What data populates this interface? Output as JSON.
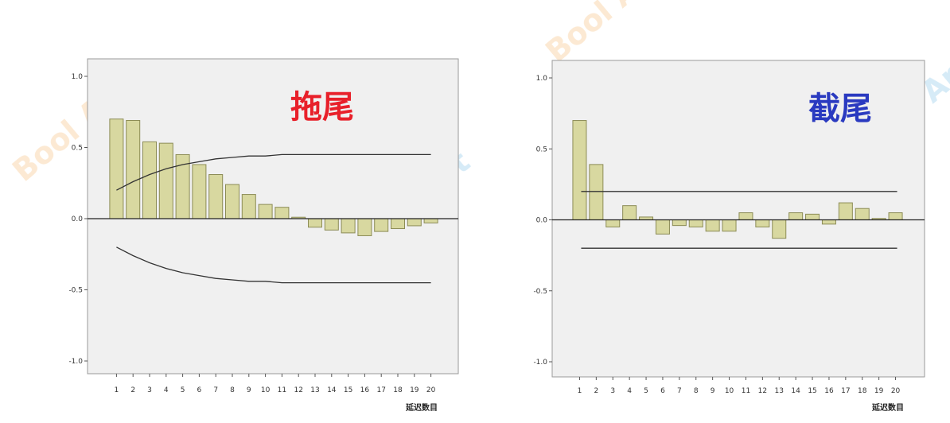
{
  "chart_data": [
    {
      "type": "bar",
      "title": "拖尾",
      "title_color": "#e8202a",
      "xlabel": "延迟数目",
      "ylabel": "",
      "ylim": [
        -1.0,
        1.0
      ],
      "yticks": [
        "1.0",
        "0.5",
        "0.0",
        "-0.5",
        "-1.0"
      ],
      "ytick_values": [
        1.0,
        0.5,
        0.0,
        -0.5,
        -1.0
      ],
      "categories": [
        "1",
        "2",
        "3",
        "4",
        "5",
        "6",
        "7",
        "8",
        "9",
        "10",
        "11",
        "12",
        "13",
        "14",
        "15",
        "16",
        "17",
        "18",
        "19",
        "20"
      ],
      "values": [
        0.7,
        0.69,
        0.54,
        0.53,
        0.45,
        0.38,
        0.31,
        0.24,
        0.17,
        0.1,
        0.08,
        0.01,
        -0.06,
        -0.08,
        -0.1,
        -0.12,
        -0.09,
        -0.07,
        -0.05,
        -0.03
      ],
      "bar_color": "#d8d8a0",
      "bar_stroke": "#8c8c56",
      "confidence_upper": [
        0.2,
        0.26,
        0.31,
        0.35,
        0.38,
        0.4,
        0.42,
        0.43,
        0.44,
        0.44,
        0.45,
        0.45,
        0.45,
        0.45,
        0.45,
        0.45,
        0.45,
        0.45,
        0.45,
        0.45
      ],
      "confidence_lower": [
        -0.2,
        -0.26,
        -0.31,
        -0.35,
        -0.38,
        -0.4,
        -0.42,
        -0.43,
        -0.44,
        -0.44,
        -0.45,
        -0.45,
        -0.45,
        -0.45,
        -0.45,
        -0.45,
        -0.45,
        -0.45,
        -0.45,
        -0.45
      ],
      "grid": false
    },
    {
      "type": "bar",
      "title": "截尾",
      "title_color": "#2a3ac0",
      "xlabel": "延迟数目",
      "ylabel": "",
      "ylim": [
        -1.0,
        1.0
      ],
      "yticks": [
        "1.0",
        "0.5",
        "0.0",
        "-0.5",
        "-1.0"
      ],
      "ytick_values": [
        1.0,
        0.5,
        0.0,
        -0.5,
        -1.0
      ],
      "categories": [
        "1",
        "2",
        "3",
        "4",
        "5",
        "6",
        "7",
        "8",
        "9",
        "10",
        "11",
        "12",
        "13",
        "14",
        "15",
        "16",
        "17",
        "18",
        "19",
        "20"
      ],
      "values": [
        0.7,
        0.39,
        -0.05,
        0.1,
        0.02,
        -0.1,
        -0.04,
        -0.05,
        -0.08,
        -0.08,
        0.05,
        -0.05,
        -0.13,
        0.05,
        0.04,
        -0.03,
        0.12,
        0.08,
        0.01,
        0.05
      ],
      "bar_color": "#d8d8a0",
      "bar_stroke": "#8c8c56",
      "confidence_upper_value": 0.2,
      "confidence_lower_value": -0.2,
      "grid": false
    }
  ],
  "watermark": {
    "text_a": "Bool Art",
    "color": "#c8e4f4",
    "color_warm": "#fbe2c4"
  }
}
